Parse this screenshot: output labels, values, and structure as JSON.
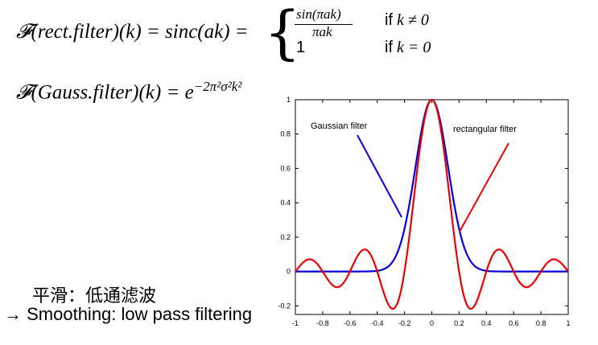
{
  "equations": {
    "rect_lhs": "𝓕(rect.filter)(k) = sinc(ak) =",
    "case1_num": "sin(πak)",
    "case1_den": "πak",
    "case1_cond_if": "if",
    "case1_cond_expr": "k ≠ 0",
    "case2_value": "1",
    "case2_cond_if": "if",
    "case2_cond_expr": "k = 0",
    "gauss_lhs": "𝓕(Gauss.filter)(k) = e",
    "gauss_exp": "−2π²σ²k²"
  },
  "captions": {
    "chinese": "平滑：低通滤波",
    "english": "→ Smoothing: low pass filtering"
  },
  "chart_data": {
    "type": "line",
    "xlim": [
      -1,
      1
    ],
    "ylim": [
      -0.25,
      1
    ],
    "x_ticks": [
      -1,
      -0.8,
      -0.6,
      -0.4,
      -0.2,
      0,
      0.2,
      0.4,
      0.6,
      0.8,
      1
    ],
    "x_tick_labels": [
      "-1",
      "-0.8",
      "-0.6",
      "-0.4",
      "-0.2",
      "0",
      "0.2",
      "0.4",
      "0.6",
      "0.8",
      "1"
    ],
    "y_ticks": [
      -0.2,
      0,
      0.2,
      0.4,
      0.6,
      0.8,
      1
    ],
    "y_tick_labels": [
      "-0.2",
      "0",
      "0.2",
      "0.4",
      "0.6",
      "0.8",
      "1"
    ],
    "grid": false,
    "series": [
      {
        "name": "Gaussian filter",
        "color": "#0000dd",
        "function": "gaussian",
        "sigma": 0.12
      },
      {
        "name": "rectangular filter",
        "color": "#ee0000",
        "function": "sinc",
        "a": 5
      }
    ],
    "annotations": [
      {
        "text": "Gaussian filter",
        "color": "#0000dd"
      },
      {
        "text": "rectangular filter",
        "color": "#ee0000"
      }
    ]
  }
}
